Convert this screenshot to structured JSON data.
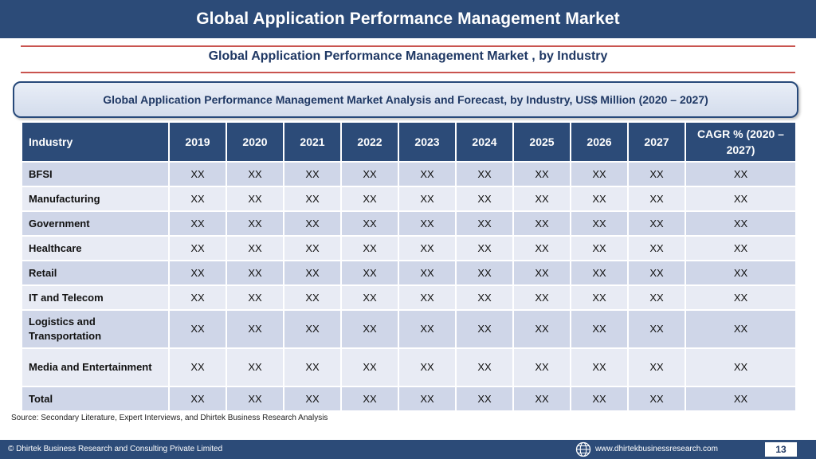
{
  "header": {
    "title": "Global Application Performance Management Market"
  },
  "subtitle": "Global Application Performance Management Market , by Industry",
  "banner": "Global Application Performance Management Market  Analysis and Forecast, by Industry, US$ Million (2020 – 2027)",
  "table": {
    "columns": [
      "Industry",
      "2019",
      "2020",
      "2021",
      "2022",
      "2023",
      "2024",
      "2025",
      "2026",
      "2027",
      "CAGR % (2020 – 2027)"
    ],
    "rows": [
      {
        "label": "BFSI",
        "values": [
          "XX",
          "XX",
          "XX",
          "XX",
          "XX",
          "XX",
          "XX",
          "XX",
          "XX",
          "XX"
        ]
      },
      {
        "label": "Manufacturing",
        "values": [
          "XX",
          "XX",
          "XX",
          "XX",
          "XX",
          "XX",
          "XX",
          "XX",
          "XX",
          "XX"
        ]
      },
      {
        "label": "Government",
        "values": [
          "XX",
          "XX",
          "XX",
          "XX",
          "XX",
          "XX",
          "XX",
          "XX",
          "XX",
          "XX"
        ]
      },
      {
        "label": "Healthcare",
        "values": [
          "XX",
          "XX",
          "XX",
          "XX",
          "XX",
          "XX",
          "XX",
          "XX",
          "XX",
          "XX"
        ]
      },
      {
        "label": "Retail",
        "values": [
          "XX",
          "XX",
          "XX",
          "XX",
          "XX",
          "XX",
          "XX",
          "XX",
          "XX",
          "XX"
        ]
      },
      {
        "label": "IT and Telecom",
        "values": [
          "XX",
          "XX",
          "XX",
          "XX",
          "XX",
          "XX",
          "XX",
          "XX",
          "XX",
          "XX"
        ]
      },
      {
        "label": "Logistics and Transportation",
        "values": [
          "XX",
          "XX",
          "XX",
          "XX",
          "XX",
          "XX",
          "XX",
          "XX",
          "XX",
          "XX"
        ]
      },
      {
        "label": "Media and Entertainment",
        "values": [
          "XX",
          "XX",
          "XX",
          "XX",
          "XX",
          "XX",
          "XX",
          "XX",
          "XX",
          "XX"
        ]
      },
      {
        "label": "Total",
        "values": [
          "XX",
          "XX",
          "XX",
          "XX",
          "XX",
          "XX",
          "XX",
          "XX",
          "XX",
          "XX"
        ]
      }
    ]
  },
  "source": "Source: Secondary Literature, Expert Interviews, and Dhirtek Business Research Analysis",
  "footer": {
    "copyright": "© Dhirtek Business Research and Consulting Private Limited",
    "website": "www.dhirtekbusinessresearch.com",
    "page": "13",
    "globe_icon": "globe-icon"
  },
  "colors": {
    "primary": "#2c4b78",
    "accent_rule": "#c9544f",
    "row_odd": "#cfd6e8",
    "row_even": "#e8ebf4"
  }
}
